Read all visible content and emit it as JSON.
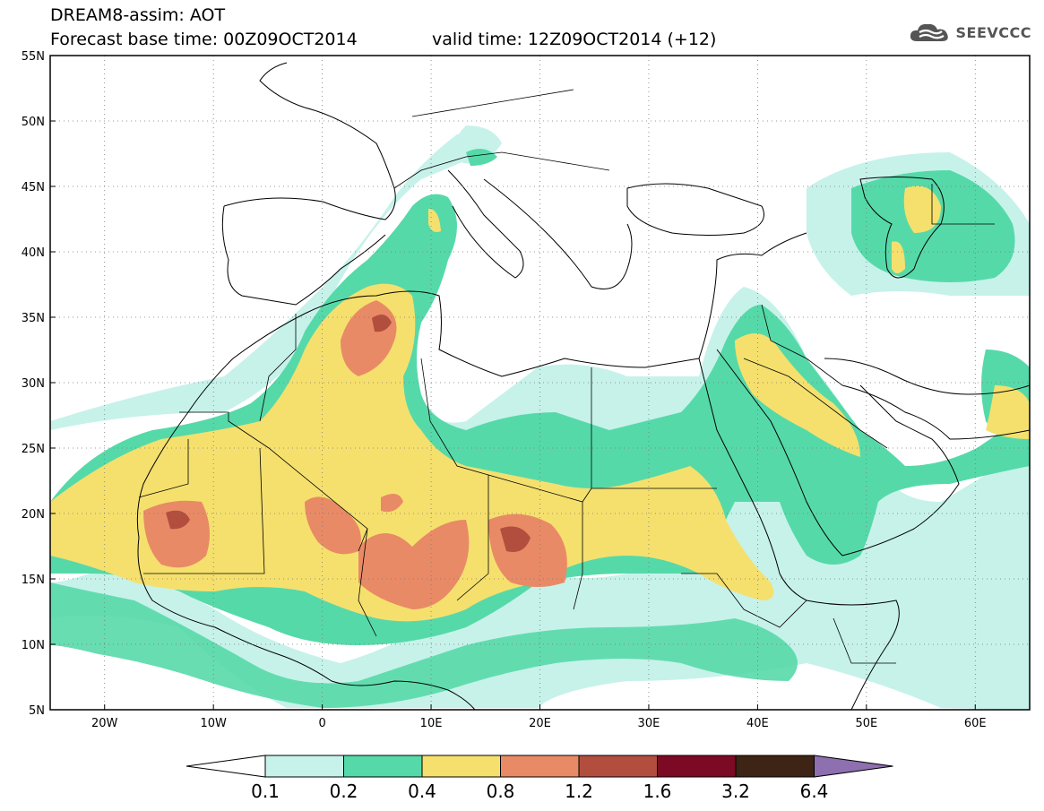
{
  "title": {
    "line1": "DREAM8-assim: AOT",
    "base_time": "Forecast base time: 00Z09OCT2014",
    "valid_time": "valid time: 12Z09OCT2014 (+12)"
  },
  "logo": {
    "text": "SEEVCCC",
    "icon": "cloud-icon"
  },
  "axes": {
    "lat_labels": [
      "55N",
      "50N",
      "45N",
      "40N",
      "35N",
      "30N",
      "25N",
      "20N",
      "15N",
      "10N",
      "5N"
    ],
    "lon_labels": [
      "20W",
      "10W",
      "0",
      "10E",
      "20E",
      "30E",
      "40E",
      "50E",
      "60E"
    ],
    "lat_values": [
      55,
      50,
      45,
      40,
      35,
      30,
      25,
      20,
      15,
      10,
      5
    ],
    "lon_values": [
      -20,
      -10,
      0,
      10,
      20,
      30,
      40,
      50,
      60
    ],
    "lon_range": [
      -25,
      65
    ],
    "lat_range": [
      5,
      55
    ],
    "grid": "dotted"
  },
  "colorbar": {
    "labels": [
      "0.1",
      "0.2",
      "0.4",
      "0.8",
      "1.2",
      "1.6",
      "3.2",
      "6.4"
    ],
    "colors": [
      "#c6f2ea",
      "#56d9a9",
      "#f5e06e",
      "#e98a66",
      "#b24e3e",
      "#7c0a24",
      "#3e2414"
    ],
    "under_color": "#ffffff",
    "over_color": "#8e6fb0"
  },
  "fill_colors": {
    "c1": "#c6f2ea",
    "c2": "#56d9a9",
    "c3": "#f5e06e",
    "c4": "#e98a66",
    "c5": "#b24e3e"
  }
}
